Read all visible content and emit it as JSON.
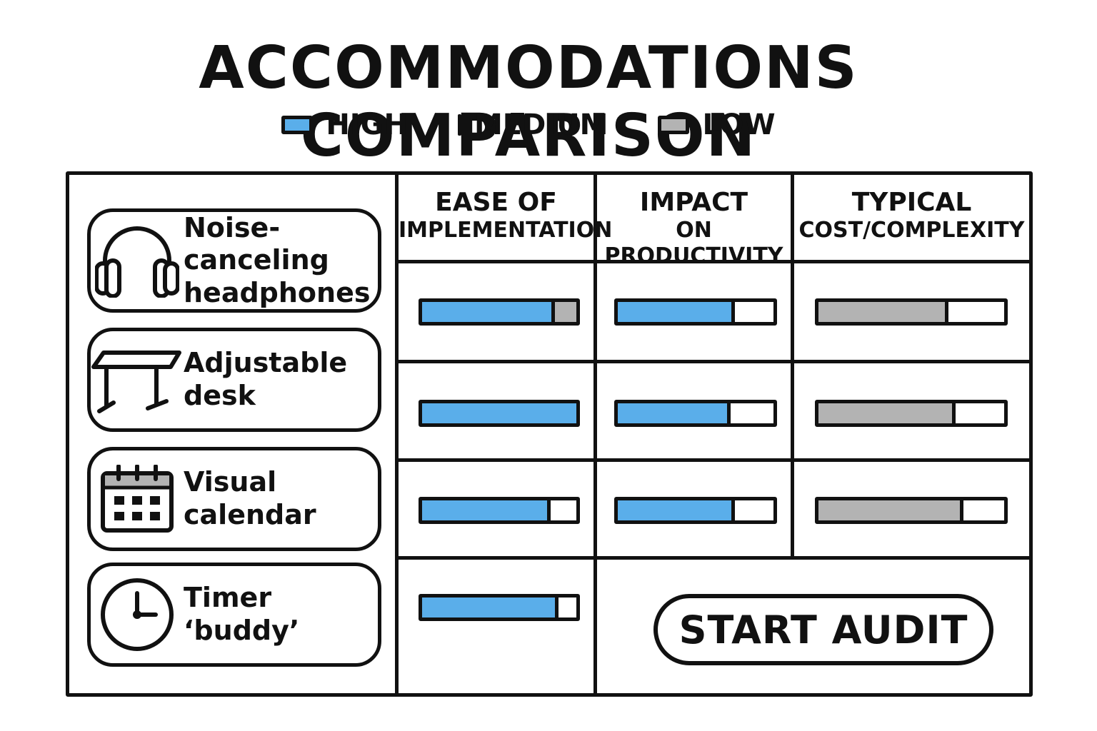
{
  "title": "ACCOMMODATIONS COMPARISON",
  "legend": [
    {
      "label": "HIGH",
      "color": "#5aaeea"
    },
    {
      "label": "MEDIUM",
      "color": "#111111"
    },
    {
      "label": "LOW",
      "color": "#b3b3b3"
    }
  ],
  "columns": [
    {
      "line1": "EASE OF",
      "line2": "IMPLEMENTATION"
    },
    {
      "line1": "IMPACT",
      "line2": "ON PRODUCTIVITY"
    },
    {
      "line1": "TYPICAL",
      "line2": "COST/COMPLEXITY"
    }
  ],
  "items": [
    {
      "label": "Noise-canceling\nheadphones",
      "icon": "headphones-icon"
    },
    {
      "label": "Adjustable\ndesk",
      "icon": "desk-icon"
    },
    {
      "label": "Visual\ncalendar",
      "icon": "calendar-icon"
    },
    {
      "label": "Timer\n‘buddy’",
      "icon": "clock-icon"
    }
  ],
  "ratings": [
    [
      {
        "fill": 0.84,
        "level": "high",
        "extra_low": 0.14
      },
      {
        "fill": 0.73,
        "level": "high"
      },
      {
        "fill": 0.68,
        "level": "low"
      }
    ],
    [
      {
        "fill": 1.0,
        "level": "high"
      },
      {
        "fill": 0.7,
        "level": "high"
      },
      {
        "fill": 0.72,
        "level": "low"
      }
    ],
    [
      {
        "fill": 0.81,
        "level": "high"
      },
      {
        "fill": 0.73,
        "level": "high"
      },
      {
        "fill": 0.76,
        "level": "low"
      }
    ],
    [
      {
        "fill": 0.86,
        "level": "high"
      },
      null,
      null
    ]
  ],
  "colors": {
    "high": "#5aaeea",
    "low": "#b3b3b3",
    "ink": "#111111"
  },
  "action": {
    "label": "START AUDIT"
  }
}
